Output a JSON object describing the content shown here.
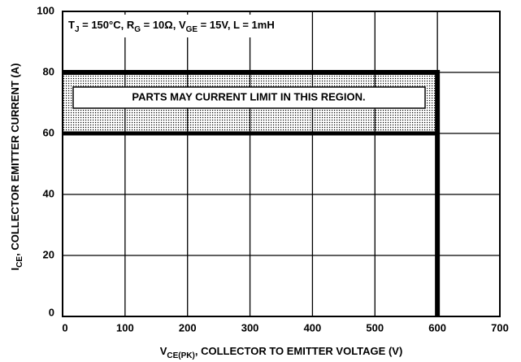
{
  "chart_data": {
    "type": "line",
    "annotation": [
      "T",
      "J",
      " = 150°C, R",
      "G",
      " = 10Ω, V",
      "GE",
      " = 15V, L = 1mH"
    ],
    "region_label": "PARTS MAY CURRENT LIMIT IN THIS REGION.",
    "x_label": [
      "V",
      "CE(PK)",
      ", COLLECTOR TO EMITTER VOLTAGE (V)"
    ],
    "y_label": [
      "I",
      "CE",
      ", COLLECTOR EMITTER CURRENT (A)"
    ],
    "series": [
      {
        "color": "#000000",
        "x": [
          0,
          600,
          600
        ],
        "values": [
          80,
          80,
          0
        ]
      },
      {
        "color": "#000000",
        "x": [
          0,
          600
        ],
        "values": [
          60,
          60
        ]
      }
    ],
    "xlim": [
      0,
      700
    ],
    "xticks": [
      0,
      100,
      200,
      300,
      400,
      500,
      600,
      700
    ],
    "ylim": [
      0,
      100
    ],
    "yticks": [
      0,
      20,
      40,
      60,
      80,
      100
    ],
    "grid": true
  }
}
